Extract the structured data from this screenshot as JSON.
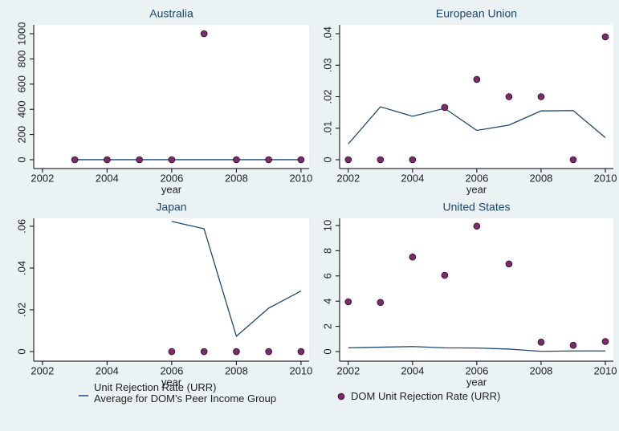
{
  "chart_data": {
    "type": "line",
    "x": [
      2002,
      2003,
      2004,
      2005,
      2006,
      2007,
      2008,
      2009,
      2010
    ],
    "xlabel": "year",
    "xlim": [
      2001.73,
      2010.25
    ],
    "xticks": [
      2002,
      2004,
      2006,
      2008,
      2010
    ],
    "series": [
      {
        "name": "Unit Rejection Rate (URR)\nAverage for DOM’s Peer Income Group",
        "color": "#1a476f",
        "mark": "line"
      },
      {
        "name": "DOM Unit Rejection Rate (URR)",
        "color": "#7d2a6c",
        "mark": "dot"
      }
    ],
    "panels": [
      {
        "title": "Australia",
        "ylim": [
          -70,
          1070
        ],
        "yticks": [
          0,
          200,
          400,
          600,
          800,
          1000
        ],
        "values": [
          [
            null,
            0.5,
            0.6,
            0.4,
            0.5,
            0.4,
            0.5,
            0.3,
            0.4
          ],
          [
            null,
            0,
            0,
            0,
            0,
            1000,
            0,
            0,
            0
          ]
        ]
      },
      {
        "title": "European Union",
        "ylim": [
          -0.0028,
          0.0428
        ],
        "yticks": [
          0,
          {
            "value": 0.01,
            "label": ".01"
          },
          {
            "value": 0.02,
            "label": ".02"
          },
          {
            "value": 0.03,
            "label": ".03"
          },
          {
            "value": 0.04,
            "label": ".04"
          }
        ],
        "values": [
          [
            0.005,
            0.0168,
            0.0138,
            0.0163,
            0.0093,
            0.011,
            0.0155,
            0.0156,
            0.007
          ],
          [
            0,
            0,
            0,
            0.0166,
            0.0255,
            0.02,
            0.02,
            0,
            0.039
          ]
        ]
      },
      {
        "title": "Japan",
        "ylim": [
          -0.0046,
          0.0638
        ],
        "yticks": [
          0,
          {
            "value": 0.02,
            "label": ".02"
          },
          {
            "value": 0.04,
            "label": ".04"
          },
          {
            "value": 0.06,
            "label": ".06"
          }
        ],
        "values": [
          [
            null,
            null,
            null,
            null,
            0.0623,
            0.0588,
            0.0073,
            0.0208,
            0.029
          ],
          [
            null,
            null,
            null,
            null,
            0,
            0,
            0,
            0,
            0
          ]
        ]
      },
      {
        "title": "United States",
        "ylim": [
          -0.76,
          10.57
        ],
        "yticks": [
          0,
          2,
          4,
          6,
          8,
          10
        ],
        "values": [
          [
            0.3,
            0.35,
            0.4,
            0.3,
            0.28,
            0.2,
            0.02,
            0.05,
            0.05
          ],
          [
            3.95,
            3.9,
            7.5,
            6.05,
            9.95,
            6.95,
            0.75,
            0.5,
            0.8
          ]
        ]
      }
    ]
  }
}
